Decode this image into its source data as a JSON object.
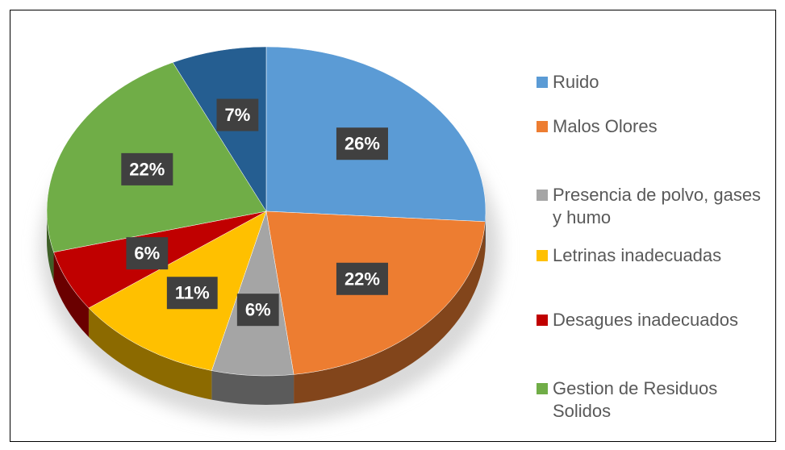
{
  "chart_data": {
    "type": "pie",
    "categories": [
      "Ruido",
      "Malos Olores",
      "Presencia de polvo, gases y humo",
      "Letrinas inadecuadas",
      "Desagues inadecuados",
      "Gestion de Residuos Solidos",
      null
    ],
    "values": [
      26,
      22,
      6,
      11,
      6,
      22,
      7
    ],
    "value_labels": [
      "26%",
      "22%",
      "6%",
      "11%",
      "6%",
      "22%",
      "7%"
    ],
    "colors": [
      "#5b9bd5",
      "#ed7d31",
      "#a5a5a5",
      "#ffc000",
      "#c00000",
      "#70ad47",
      "#255e91"
    ]
  }
}
